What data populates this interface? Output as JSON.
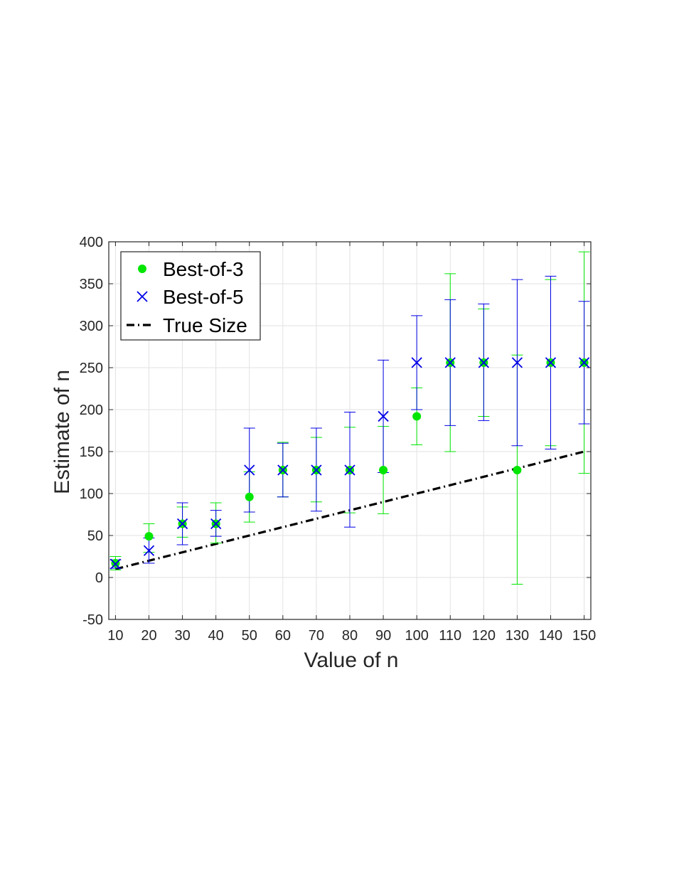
{
  "chart_data": {
    "type": "scatter",
    "title": "",
    "xlabel": "Value of n",
    "ylabel": "Estimate of n",
    "xlim": [
      8,
      152
    ],
    "ylim": [
      -50,
      400
    ],
    "xticks": [
      10,
      20,
      30,
      40,
      50,
      60,
      70,
      80,
      90,
      100,
      110,
      120,
      130,
      140,
      150
    ],
    "yticks": [
      -50,
      0,
      50,
      100,
      150,
      200,
      250,
      300,
      350,
      400
    ],
    "grid": true,
    "legend_position": "top-left",
    "series": [
      {
        "name": "Best-of-3",
        "marker": "dot",
        "color": "#00e600",
        "x": [
          10,
          20,
          30,
          40,
          50,
          60,
          70,
          80,
          90,
          100,
          110,
          120,
          130,
          140,
          150
        ],
        "y": [
          17,
          49,
          64,
          64,
          96,
          128,
          128,
          128,
          128,
          192,
          256,
          256,
          128,
          256,
          256
        ],
        "err_low": [
          9,
          30,
          48,
          41,
          66,
          96,
          90,
          77,
          76,
          158,
          150,
          192,
          -8,
          157,
          124
        ],
        "err_high": [
          25,
          64,
          84,
          89,
          126,
          161,
          167,
          179,
          180,
          226,
          362,
          320,
          265,
          355,
          388
        ]
      },
      {
        "name": "Best-of-5",
        "marker": "x",
        "color": "#0000e6",
        "x": [
          10,
          20,
          30,
          40,
          50,
          60,
          70,
          80,
          90,
          100,
          110,
          120,
          130,
          140,
          150
        ],
        "y": [
          16,
          32,
          64,
          64,
          128,
          128,
          128,
          128,
          192,
          256,
          256,
          256,
          256,
          256,
          256
        ],
        "err_low": [
          11,
          17,
          39,
          49,
          78,
          96,
          79,
          60,
          125,
          200,
          181,
          187,
          157,
          153,
          183
        ],
        "err_high": [
          21,
          47,
          89,
          80,
          178,
          160,
          178,
          197,
          259,
          312,
          331,
          326,
          355,
          359,
          329
        ]
      },
      {
        "name": "True Size",
        "marker": "dash-dot",
        "color": "#000000",
        "x": [
          10,
          150
        ],
        "y": [
          10,
          150
        ]
      }
    ]
  }
}
